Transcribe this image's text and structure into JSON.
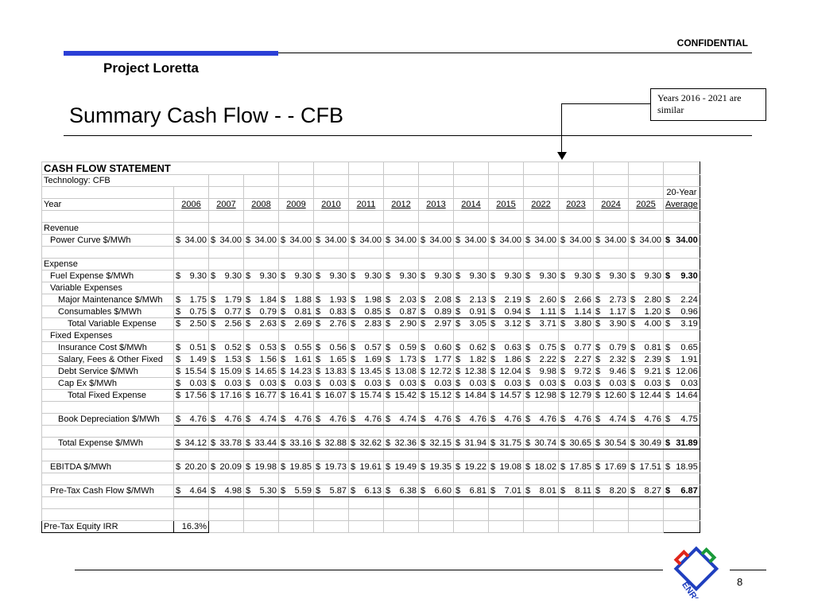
{
  "header": {
    "confidential": "CONFIDENTIAL",
    "project": "Project Loretta",
    "title": "Summary Cash Flow - - CFB",
    "callout": "Years 2016 - 2021 are similar"
  },
  "table": {
    "heading": "CASH FLOW STATEMENT",
    "technology": "Technology: CFB",
    "year_label": "Year",
    "avg_label_1": "20-Year",
    "avg_label_2": "Average",
    "years": [
      "2006",
      "2007",
      "2008",
      "2009",
      "2010",
      "2011",
      "2012",
      "2013",
      "2014",
      "2015",
      "2022",
      "2023",
      "2024",
      "2025"
    ],
    "revenue_label": "Revenue",
    "expense_label": "Expense",
    "variable_label": "Variable Expenses",
    "fixed_label": "Fixed Expenses",
    "rows": {
      "power_curve": {
        "label": "Power Curve $/MWh",
        "values": [
          "34.00",
          "34.00",
          "34.00",
          "34.00",
          "34.00",
          "34.00",
          "34.00",
          "34.00",
          "34.00",
          "34.00",
          "34.00",
          "34.00",
          "34.00",
          "34.00"
        ],
        "avg": "34.00"
      },
      "fuel": {
        "label": "Fuel Expense $/MWh",
        "values": [
          "9.30",
          "9.30",
          "9.30",
          "9.30",
          "9.30",
          "9.30",
          "9.30",
          "9.30",
          "9.30",
          "9.30",
          "9.30",
          "9.30",
          "9.30",
          "9.30"
        ],
        "avg": "9.30"
      },
      "major_maint": {
        "label": "Major Maintenance $/MWh",
        "values": [
          "1.75",
          "1.79",
          "1.84",
          "1.88",
          "1.93",
          "1.98",
          "2.03",
          "2.08",
          "2.13",
          "2.19",
          "2.60",
          "2.66",
          "2.73",
          "2.80"
        ],
        "avg": "2.24"
      },
      "consumables": {
        "label": "Consumables $/MWh",
        "values": [
          "0.75",
          "0.77",
          "0.79",
          "0.81",
          "0.83",
          "0.85",
          "0.87",
          "0.89",
          "0.91",
          "0.94",
          "1.11",
          "1.14",
          "1.17",
          "1.20"
        ],
        "avg": "0.96"
      },
      "total_variable": {
        "label": "Total Variable Expense",
        "values": [
          "2.50",
          "2.56",
          "2.63",
          "2.69",
          "2.76",
          "2.83",
          "2.90",
          "2.97",
          "3.05",
          "3.12",
          "3.71",
          "3.80",
          "3.90",
          "4.00"
        ],
        "avg": "3.19"
      },
      "insurance": {
        "label": "Insurance Cost $/MWh",
        "values": [
          "0.51",
          "0.52",
          "0.53",
          "0.55",
          "0.56",
          "0.57",
          "0.59",
          "0.60",
          "0.62",
          "0.63",
          "0.75",
          "0.77",
          "0.79",
          "0.81"
        ],
        "avg": "0.65"
      },
      "salary": {
        "label": "Salary, Fees & Other Fixed",
        "values": [
          "1.49",
          "1.53",
          "1.56",
          "1.61",
          "1.65",
          "1.69",
          "1.73",
          "1.77",
          "1.82",
          "1.86",
          "2.22",
          "2.27",
          "2.32",
          "2.39"
        ],
        "avg": "1.91"
      },
      "debt": {
        "label": "Debt Service $/MWh",
        "values": [
          "15.54",
          "15.09",
          "14.65",
          "14.23",
          "13.83",
          "13.45",
          "13.08",
          "12.72",
          "12.38",
          "12.04",
          "9.98",
          "9.72",
          "9.46",
          "9.21"
        ],
        "avg": "12.06"
      },
      "capex": {
        "label": "Cap Ex $/MWh",
        "values": [
          "0.03",
          "0.03",
          "0.03",
          "0.03",
          "0.03",
          "0.03",
          "0.03",
          "0.03",
          "0.03",
          "0.03",
          "0.03",
          "0.03",
          "0.03",
          "0.03"
        ],
        "avg": "0.03"
      },
      "total_fixed": {
        "label": "Total Fixed Expense",
        "values": [
          "17.56",
          "17.16",
          "16.77",
          "16.41",
          "16.07",
          "15.74",
          "15.42",
          "15.12",
          "14.84",
          "14.57",
          "12.98",
          "12.79",
          "12.60",
          "12.44"
        ],
        "avg": "14.64"
      },
      "book_dep": {
        "label": "Book Depreciation $/MWh",
        "values": [
          "4.76",
          "4.76",
          "4.74",
          "4.76",
          "4.76",
          "4.76",
          "4.74",
          "4.76",
          "4.76",
          "4.76",
          "4.76",
          "4.76",
          "4.74",
          "4.76"
        ],
        "avg": "4.75"
      },
      "total_expense": {
        "label": "Total Expense $/MWh",
        "values": [
          "34.12",
          "33.78",
          "33.44",
          "33.16",
          "32.88",
          "32.62",
          "32.36",
          "32.15",
          "31.94",
          "31.75",
          "30.74",
          "30.65",
          "30.54",
          "30.49"
        ],
        "avg": "31.89"
      },
      "ebitda": {
        "label": "EBITDA $/MWh",
        "values": [
          "20.20",
          "20.09",
          "19.98",
          "19.85",
          "19.73",
          "19.61",
          "19.49",
          "19.35",
          "19.22",
          "19.08",
          "18.02",
          "17.85",
          "17.69",
          "17.51"
        ],
        "avg": "18.95"
      },
      "pretax_cf": {
        "label": "Pre-Tax Cash Flow $/MWh",
        "values": [
          "4.64",
          "4.98",
          "5.30",
          "5.59",
          "5.87",
          "6.13",
          "6.38",
          "6.60",
          "6.81",
          "7.01",
          "8.01",
          "8.11",
          "8.20",
          "8.27"
        ],
        "avg": "6.87"
      }
    },
    "irr_label": "Pre-Tax Equity IRR",
    "irr_value": "16.3%",
    "currency_symbol": "$"
  },
  "footer": {
    "page_number": "8",
    "logo_text": "ENRON"
  },
  "colors": {
    "accent_bar": "#2b3fd6",
    "logo_red": "#e0261b",
    "logo_green": "#1a9a3a",
    "logo_blue": "#1f3fbf"
  }
}
